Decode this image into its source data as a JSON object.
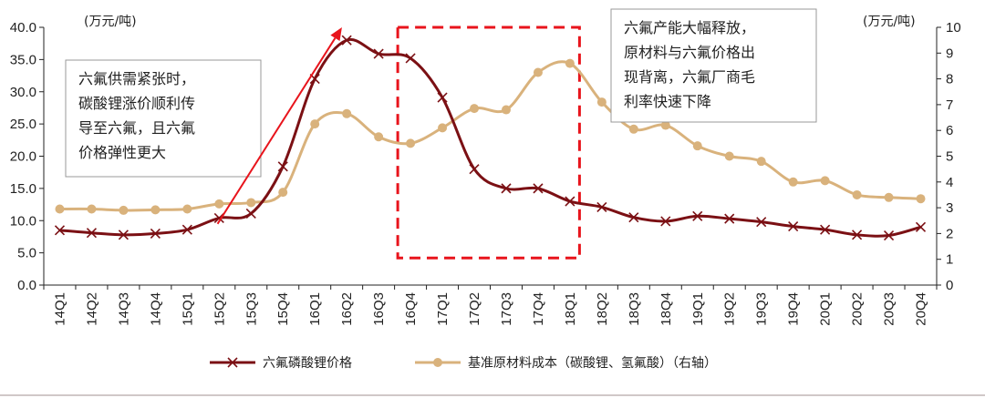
{
  "chart_data": {
    "type": "line",
    "categories": [
      "14Q1",
      "14Q2",
      "14Q3",
      "14Q4",
      "15Q1",
      "15Q2",
      "15Q3",
      "15Q4",
      "16Q1",
      "16Q2",
      "16Q3",
      "16Q4",
      "17Q1",
      "17Q2",
      "17Q3",
      "17Q4",
      "18Q1",
      "18Q2",
      "18Q3",
      "18Q4",
      "19Q1",
      "19Q2",
      "19Q3",
      "19Q4",
      "20Q1",
      "20Q2",
      "20Q3",
      "20Q4"
    ],
    "series": [
      {
        "name": "六氟磷酸锂价格",
        "axis": "left",
        "color": "#7b1014",
        "marker": "x",
        "values": [
          8.5,
          8.1,
          7.8,
          8.0,
          8.6,
          10.4,
          11.1,
          18.4,
          32.0,
          38.0,
          35.9,
          35.2,
          29.1,
          18.0,
          15.0,
          15.0,
          13.0,
          12.1,
          10.5,
          9.9,
          10.7,
          10.3,
          9.8,
          9.1,
          8.6,
          7.8,
          7.7,
          9.0
        ]
      },
      {
        "name": "基准原材料成本（碳酸锂、氢氟酸）（右轴）",
        "axis": "right",
        "color": "#d9b27c",
        "marker": "circle",
        "values": [
          2.95,
          2.95,
          2.9,
          2.92,
          2.95,
          3.15,
          3.2,
          3.6,
          6.25,
          6.65,
          5.75,
          5.5,
          6.1,
          6.85,
          6.8,
          8.25,
          8.6,
          7.1,
          6.05,
          6.2,
          5.4,
          5.0,
          4.8,
          4.0,
          4.05,
          3.5,
          3.4,
          3.35
        ]
      }
    ],
    "y_left": {
      "unit": "(万元/吨)",
      "range": [
        0,
        40
      ],
      "ticks": [
        "0.0",
        "5.0",
        "10.0",
        "15.0",
        "20.0",
        "25.0",
        "30.0",
        "35.0",
        "40.0"
      ]
    },
    "y_right": {
      "unit": "(万元/吨)",
      "range": [
        0,
        10
      ],
      "ticks": [
        "0",
        "1",
        "2",
        "3",
        "4",
        "5",
        "6",
        "7",
        "8",
        "9",
        "10"
      ]
    },
    "grid": false,
    "legend": "bottom",
    "annotations": [
      {
        "lines": [
          "六氟供需紧张时，",
          "碳酸锂涨价顺利传",
          "导至六氟，且六氟",
          "价格弹性更大"
        ]
      },
      {
        "lines": [
          "六氟产能大幅释放，",
          "原材料与六氟价格出",
          "现背离，六氟厂商毛",
          "利率快速下降"
        ]
      }
    ],
    "highlight_range": [
      "16Q4",
      "18Q1"
    ],
    "arrow_range": [
      "15Q2",
      "16Q2"
    ],
    "annotation_box_color": "#999999",
    "highlight_color": "#e8141c",
    "arrow_color": "#e8141c",
    "frame_color": "#d0c8c8"
  }
}
